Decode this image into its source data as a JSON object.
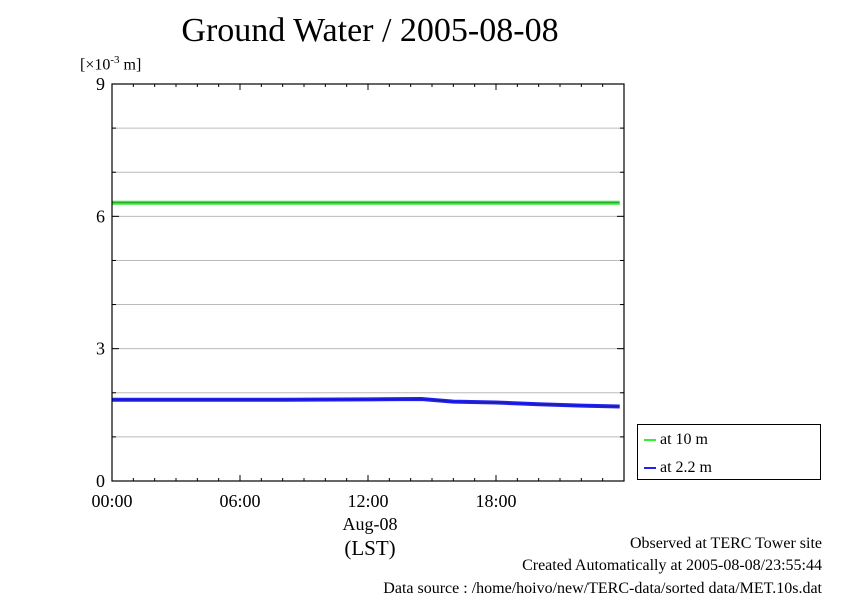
{
  "chart_data": {
    "type": "line",
    "title": "Ground Water / 2005-08-08",
    "yunit": "[×10-3 m]",
    "ylim": [
      0,
      9
    ],
    "yticks": [
      0,
      3,
      6,
      9
    ],
    "xlim": [
      0,
      24
    ],
    "xticks": [
      "00:00",
      "06:00",
      "12:00",
      "18:00"
    ],
    "xtick_values": [
      0,
      6,
      12,
      18
    ],
    "xdate": "Aug-08",
    "xlabel": "(LST)",
    "legend_position": "bottom-right, outside plot",
    "series": [
      {
        "name": "at 10 m",
        "color": "#33ee33",
        "x": [
          0,
          4,
          8,
          12,
          16,
          20,
          23.8
        ],
        "values": [
          6.31,
          6.31,
          6.31,
          6.31,
          6.31,
          6.31,
          6.31
        ]
      },
      {
        "name": "at 2.2 m",
        "color": "#2222ee",
        "x": [
          0,
          4,
          8,
          12,
          14.5,
          15.5,
          16,
          18,
          20,
          22,
          23.8
        ],
        "values": [
          1.84,
          1.84,
          1.84,
          1.85,
          1.86,
          1.82,
          1.8,
          1.78,
          1.74,
          1.71,
          1.69
        ]
      }
    ]
  },
  "footer": {
    "observed": "Observed at TERC Tower site",
    "created": "Created Automatically at 2005-08-08/23:55:44",
    "source": "Data source : /home/hoivo/new/TERC-data/sorted  data/MET.10s.dat"
  }
}
